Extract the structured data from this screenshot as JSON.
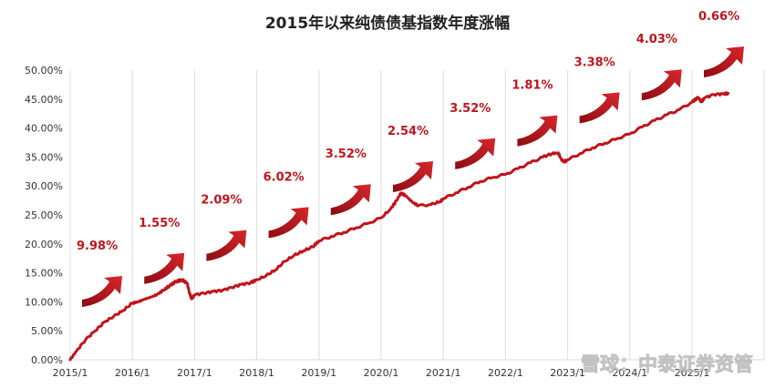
{
  "chart_data": {
    "type": "line",
    "title": "2015年以来纯债债基指数年度涨幅",
    "xlabel": "",
    "ylabel": "",
    "ylim": [
      0,
      50
    ],
    "y_ticks": [
      "0.00%",
      "5.00%",
      "10.00%",
      "15.00%",
      "20.00%",
      "25.00%",
      "30.00%",
      "35.00%",
      "40.00%",
      "45.00%",
      "50.00%"
    ],
    "x_ticks": [
      "2015/1",
      "2016/1",
      "2017/1",
      "2018/1",
      "2019/1",
      "2020/1",
      "2021/1",
      "2022/1",
      "2023/1",
      "2024/1",
      "2025/1"
    ],
    "x_start": "2015/1",
    "x_end": "2025/7",
    "grid": "vertical",
    "legend": "none",
    "line_color": "#c0141c",
    "series": [
      {
        "values": [
          [
            2015.0,
            0.0
          ],
          [
            2015.1,
            1.5
          ],
          [
            2015.25,
            3.5
          ],
          [
            2015.4,
            5.0
          ],
          [
            2015.55,
            6.5
          ],
          [
            2015.7,
            7.5
          ],
          [
            2015.85,
            8.5
          ],
          [
            2016.0,
            9.8
          ],
          [
            2016.1,
            10.0
          ],
          [
            2016.2,
            10.5
          ],
          [
            2016.3,
            10.8
          ],
          [
            2016.4,
            11.3
          ],
          [
            2016.5,
            12.0
          ],
          [
            2016.6,
            12.8
          ],
          [
            2016.7,
            13.5
          ],
          [
            2016.8,
            13.8
          ],
          [
            2016.88,
            13.2
          ],
          [
            2016.92,
            11.5
          ],
          [
            2016.95,
            10.5
          ],
          [
            2017.0,
            11.2
          ],
          [
            2017.15,
            11.5
          ],
          [
            2017.3,
            11.8
          ],
          [
            2017.45,
            12.0
          ],
          [
            2017.6,
            12.5
          ],
          [
            2017.75,
            13.0
          ],
          [
            2017.9,
            13.3
          ],
          [
            2018.0,
            13.8
          ],
          [
            2018.15,
            14.5
          ],
          [
            2018.3,
            15.5
          ],
          [
            2018.45,
            17.0
          ],
          [
            2018.6,
            18.0
          ],
          [
            2018.75,
            18.8
          ],
          [
            2018.9,
            19.5
          ],
          [
            2019.0,
            20.5
          ],
          [
            2019.2,
            21.3
          ],
          [
            2019.4,
            22.0
          ],
          [
            2019.6,
            22.8
          ],
          [
            2019.8,
            23.6
          ],
          [
            2020.0,
            24.5
          ],
          [
            2020.15,
            26.0
          ],
          [
            2020.25,
            27.5
          ],
          [
            2020.32,
            28.8
          ],
          [
            2020.4,
            28.3
          ],
          [
            2020.5,
            27.2
          ],
          [
            2020.6,
            26.6
          ],
          [
            2020.8,
            26.8
          ],
          [
            2020.95,
            27.3
          ],
          [
            2021.0,
            27.8
          ],
          [
            2021.2,
            28.8
          ],
          [
            2021.4,
            29.8
          ],
          [
            2021.6,
            30.8
          ],
          [
            2021.8,
            31.5
          ],
          [
            2022.0,
            32.0
          ],
          [
            2022.2,
            33.0
          ],
          [
            2022.4,
            34.0
          ],
          [
            2022.6,
            35.0
          ],
          [
            2022.75,
            35.6
          ],
          [
            2022.85,
            35.7
          ],
          [
            2022.9,
            34.5
          ],
          [
            2022.95,
            34.2
          ],
          [
            2023.0,
            34.5
          ],
          [
            2023.2,
            35.6
          ],
          [
            2023.4,
            36.6
          ],
          [
            2023.6,
            37.4
          ],
          [
            2023.8,
            38.2
          ],
          [
            2024.0,
            39.0
          ],
          [
            2024.2,
            40.2
          ],
          [
            2024.4,
            41.3
          ],
          [
            2024.6,
            42.3
          ],
          [
            2024.8,
            43.2
          ],
          [
            2025.0,
            44.5
          ],
          [
            2025.1,
            45.3
          ],
          [
            2025.15,
            44.5
          ],
          [
            2025.2,
            45.2
          ],
          [
            2025.35,
            45.8
          ],
          [
            2025.5,
            45.9
          ],
          [
            2025.58,
            46.0
          ]
        ]
      }
    ],
    "annotations": [
      {
        "year": "2015",
        "label": "9.98%"
      },
      {
        "year": "2016",
        "label": "1.55%"
      },
      {
        "year": "2017",
        "label": "2.09%"
      },
      {
        "year": "2018",
        "label": "6.02%"
      },
      {
        "year": "2019",
        "label": "3.52%"
      },
      {
        "year": "2020",
        "label": "2.54%"
      },
      {
        "year": "2021",
        "label": "3.52%"
      },
      {
        "year": "2022",
        "label": "1.81%"
      },
      {
        "year": "2023",
        "label": "3.38%"
      },
      {
        "year": "2024",
        "label": "4.03%"
      },
      {
        "year": "2025",
        "label": "0.66%"
      }
    ],
    "watermark": "雪球：中泰证券资管"
  }
}
